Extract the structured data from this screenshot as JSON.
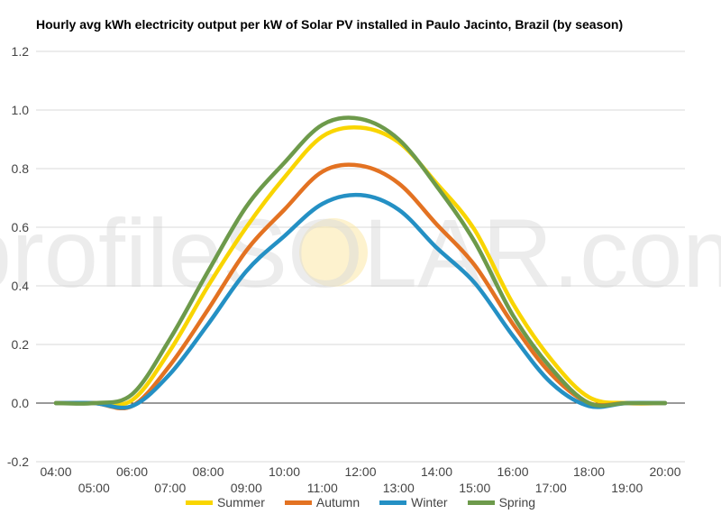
{
  "chart_data": {
    "type": "line",
    "title": "Hourly avg kWh electricity output per kW of Solar PV installed in Paulo Jacinto, Brazil (by season)",
    "xlabel": "",
    "ylabel": "",
    "ylim": [
      -0.2,
      1.2
    ],
    "yticks": [
      "-0.2",
      "0.0",
      "0.2",
      "0.4",
      "0.6",
      "0.8",
      "1.0",
      "1.2"
    ],
    "xlim": [
      4,
      20
    ],
    "xticks": [
      "04:00",
      "05:00",
      "06:00",
      "07:00",
      "08:00",
      "09:00",
      "10:00",
      "11:00",
      "12:00",
      "13:00",
      "14:00",
      "15:00",
      "16:00",
      "17:00",
      "18:00",
      "19:00",
      "20:00"
    ],
    "grid": true,
    "legend_position": "bottom",
    "watermark": "profileSOLAR.com",
    "x": [
      4,
      5,
      6,
      7,
      8,
      9,
      10,
      11,
      12,
      13,
      14,
      15,
      16,
      17,
      18,
      19,
      20
    ],
    "series": [
      {
        "name": "Summer",
        "color": "#f9d500",
        "values": [
          0.0,
          0.0,
          0.01,
          0.18,
          0.4,
          0.6,
          0.77,
          0.91,
          0.94,
          0.89,
          0.75,
          0.59,
          0.34,
          0.15,
          0.02,
          0.0,
          0.0
        ]
      },
      {
        "name": "Autumn",
        "color": "#e37222",
        "values": [
          0.0,
          0.0,
          -0.01,
          0.13,
          0.32,
          0.52,
          0.66,
          0.79,
          0.81,
          0.75,
          0.61,
          0.47,
          0.27,
          0.1,
          0.0,
          0.0,
          0.0
        ]
      },
      {
        "name": "Winter",
        "color": "#2490c4",
        "values": [
          0.0,
          0.0,
          -0.01,
          0.1,
          0.27,
          0.45,
          0.57,
          0.68,
          0.71,
          0.66,
          0.53,
          0.41,
          0.23,
          0.07,
          -0.01,
          0.0,
          0.0
        ]
      },
      {
        "name": "Spring",
        "color": "#6d9a4b",
        "values": [
          0.0,
          0.0,
          0.03,
          0.22,
          0.45,
          0.67,
          0.82,
          0.95,
          0.97,
          0.9,
          0.74,
          0.55,
          0.3,
          0.12,
          0.0,
          0.0,
          0.0
        ]
      }
    ]
  }
}
